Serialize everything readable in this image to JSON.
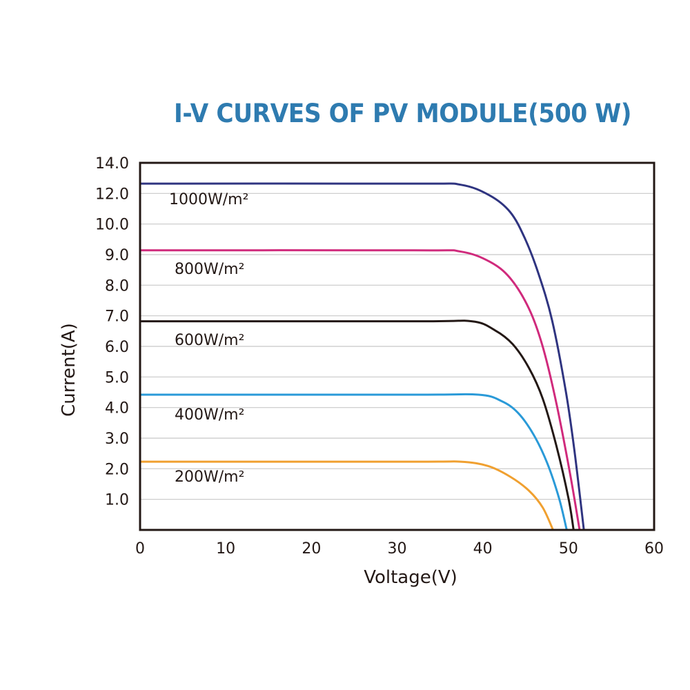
{
  "chart_data": {
    "type": "line",
    "title": "I-V CURVES OF PV MODULE(500 W)",
    "xlabel": "Voltage(V)",
    "ylabel": "Current(A)",
    "xlim": [
      0,
      60
    ],
    "ylim": [
      0,
      14
    ],
    "x_ticks": [
      "0",
      "10",
      "20",
      "30",
      "40",
      "50",
      "60"
    ],
    "y_ticks": [
      "1.0",
      "2.0",
      "3.0",
      "4.0",
      "5.0",
      "6.0",
      "7.0",
      "8.0",
      "9.0",
      "10.0",
      "12.0",
      "14.0"
    ],
    "grid": "horizontal",
    "legend": "inline labels",
    "series": [
      {
        "name": "1000W/m²",
        "color": "#2f3480",
        "points": [
          [
            0,
            12.64
          ],
          [
            32,
            12.64
          ],
          [
            37.4,
            12.57
          ],
          [
            40.8,
            11.87
          ],
          [
            43.2,
            10.78
          ],
          [
            44.9,
            9.54
          ],
          [
            46.5,
            8.38
          ],
          [
            48.1,
            6.84
          ],
          [
            49.7,
            4.52
          ],
          [
            50.7,
            2.59
          ],
          [
            51.8,
            0
          ]
        ]
      },
      {
        "name": "800W/m²",
        "color": "#d02a7c",
        "points": [
          [
            0,
            9.14
          ],
          [
            32,
            9.14
          ],
          [
            37.4,
            9.1
          ],
          [
            40.8,
            8.77
          ],
          [
            43.2,
            8.23
          ],
          [
            45.4,
            7.23
          ],
          [
            47.0,
            5.99
          ],
          [
            48.6,
            4.13
          ],
          [
            50.2,
            1.82
          ],
          [
            51.3,
            0
          ]
        ]
      },
      {
        "name": "600W/m²",
        "color": "#231815",
        "points": [
          [
            0,
            6.82
          ],
          [
            32,
            6.82
          ],
          [
            38.7,
            6.82
          ],
          [
            41.4,
            6.53
          ],
          [
            43.5,
            6.07
          ],
          [
            45.4,
            5.29
          ],
          [
            47.0,
            4.29
          ],
          [
            48.6,
            2.74
          ],
          [
            50.0,
            1.04
          ],
          [
            50.6,
            0
          ]
        ]
      },
      {
        "name": "400W/m²",
        "color": "#2a9ad8",
        "points": [
          [
            0,
            4.42
          ],
          [
            32,
            4.42
          ],
          [
            39.5,
            4.42
          ],
          [
            42.2,
            4.21
          ],
          [
            44.1,
            3.83
          ],
          [
            45.9,
            3.13
          ],
          [
            47.5,
            2.2
          ],
          [
            48.9,
            1.04
          ],
          [
            49.8,
            0
          ]
        ]
      },
      {
        "name": "200W/m²",
        "color": "#f0a030",
        "points": [
          [
            0,
            2.23
          ],
          [
            32,
            2.23
          ],
          [
            37.4,
            2.23
          ],
          [
            40.6,
            2.09
          ],
          [
            43.2,
            1.74
          ],
          [
            45.4,
            1.28
          ],
          [
            47.0,
            0.73
          ],
          [
            48.2,
            0
          ]
        ]
      }
    ]
  }
}
